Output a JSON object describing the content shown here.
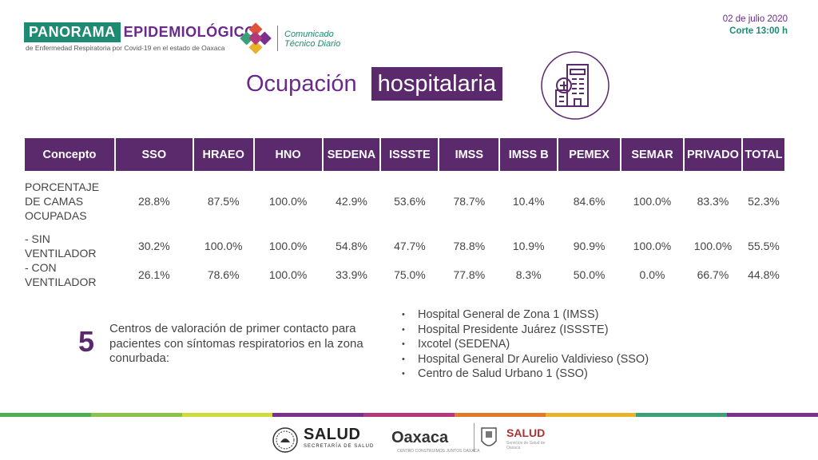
{
  "header": {
    "brand_word1": "PANORAMA",
    "brand_word2": "EPIDEMIOLÓGICO",
    "brand_subtitle": "de Enfermedad Respiratoria por Covid-19 en el estado de Oaxaca",
    "comunicado_line1": "Comunicado",
    "comunicado_line2": "Técnico Diario",
    "date": "02 de julio 2020",
    "corte": "Corte 13:00 h"
  },
  "title": {
    "part1": "Ocupación",
    "part2": "hospitalaria",
    "icon": "hospital-building-icon"
  },
  "table": {
    "headers": [
      "Concepto",
      "SSO",
      "HRAEO",
      "HNO",
      "SEDENA",
      "ISSSTE",
      "IMSS",
      "IMSS B",
      "PEMEX",
      "SEMAR",
      "PRIVADO",
      "TOTAL"
    ],
    "rows": [
      {
        "concept": "PORCENTAJE DE CAMAS OCUPADAS",
        "values": [
          "28.8%",
          "87.5%",
          "100.0%",
          "42.9%",
          "53.6%",
          "78.7%",
          "10.4%",
          "84.6%",
          "100.0%",
          "83.3%",
          "52.3%"
        ]
      },
      {
        "concept": " - SIN VENTILADOR",
        "values": [
          "30.2%",
          "100.0%",
          "100.0%",
          "54.8%",
          "47.7%",
          "78.8%",
          "10.9%",
          "90.9%",
          "100.0%",
          "100.0%",
          "55.5%"
        ]
      },
      {
        "concept": " - CON VENTILADOR",
        "values": [
          "26.1%",
          "78.6%",
          "100.0%",
          "33.9%",
          "75.0%",
          "77.8%",
          "8.3%",
          "50.0%",
          "0.0%",
          "66.7%",
          "44.8%"
        ]
      }
    ]
  },
  "centers": {
    "count": "5",
    "description": "Centros de valoración de primer contacto para pacientes con síntomas respiratorios en la zona conurbada:",
    "list": [
      "Hospital General de Zona 1 (IMSS)",
      "Hospital Presidente Juárez (ISSSTE)",
      "Ixcotel (SEDENA)",
      "Hospital General Dr Aurelio Valdivieso (SSO)",
      "Centro de Salud Urbano 1 (SSO)"
    ]
  },
  "footer": {
    "salud_title": "SALUD",
    "salud_sub": "SECRETARÍA DE SALUD",
    "oaxaca": "Oaxaca",
    "oaxaca_sub": "CENTRO CONSTRUIMOS JUNTOS OAXACA",
    "salud2_title": "SALUD",
    "salud2_sub": "Servicios de Salud de Oaxaca",
    "stripe_colors": [
      "#4caf50",
      "#8bc34a",
      "#cddc39",
      "#7b2f8f",
      "#b23a7a",
      "#e07a2a",
      "#e8b22a",
      "#3aa07a",
      "#7b2f8f"
    ]
  }
}
